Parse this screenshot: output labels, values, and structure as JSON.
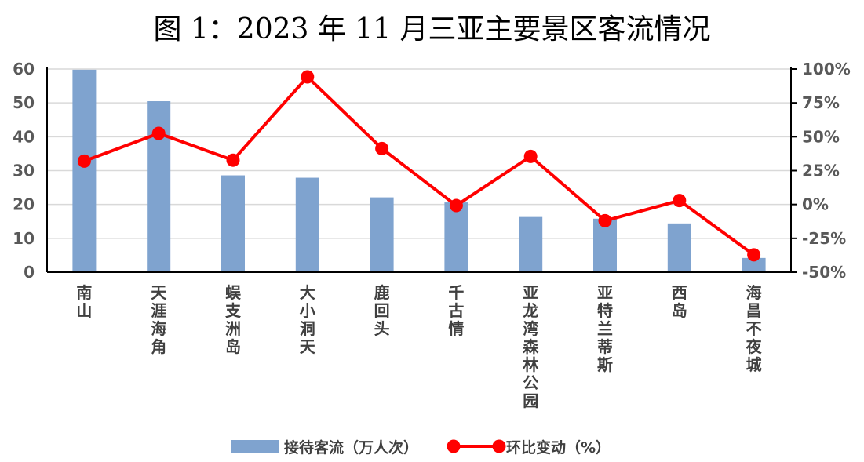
{
  "chart_data": {
    "type": "bar+line",
    "title": "图 1：2023 年 11 月三亚主要景区客流情况",
    "categories": [
      "南山",
      "天涯海角",
      "蜈支洲岛",
      "大小洞天",
      "鹿回头",
      "千古情",
      "亚龙湾森林公园",
      "亚特兰蒂斯",
      "西岛",
      "海昌不夜城"
    ],
    "series": [
      {
        "name": "接待客流（万人次）",
        "type": "bar",
        "axis": "left",
        "color": "#7FA3CF",
        "values": [
          59.8,
          50.5,
          28.6,
          27.9,
          22.1,
          20.6,
          16.3,
          15.8,
          14.4,
          4.2
        ]
      },
      {
        "name": "环比变动（%）",
        "type": "line",
        "axis": "right",
        "color": "#FF0000",
        "values": [
          32.0,
          52.5,
          32.7,
          94.2,
          41.3,
          -0.8,
          35.5,
          -12.0,
          2.9,
          -37.2
        ]
      }
    ],
    "left_axis": {
      "ylim": [
        0,
        60
      ],
      "ticks": [
        "0",
        "10",
        "20",
        "30",
        "40",
        "50",
        "60"
      ]
    },
    "right_axis": {
      "ylim": [
        -50,
        100
      ],
      "ticks": [
        "-50%",
        "-25%",
        "0%",
        "25%",
        "50%",
        "75%",
        "100%"
      ]
    },
    "grid": true,
    "legend": "bottom"
  }
}
